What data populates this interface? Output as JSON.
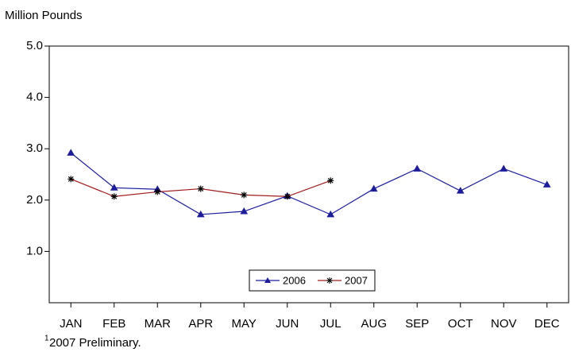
{
  "chart_data": {
    "type": "line",
    "y_label": "Million Pounds",
    "categories": [
      "JAN",
      "FEB",
      "MAR",
      "APR",
      "MAY",
      "JUN",
      "JUL",
      "AUG",
      "SEP",
      "OCT",
      "NOV",
      "DEC"
    ],
    "series": [
      {
        "name": "2006",
        "color": "#1c1c9c",
        "marker": "triangle",
        "values": [
          2.92,
          2.24,
          2.21,
          1.72,
          1.78,
          2.08,
          1.72,
          2.22,
          2.61,
          2.18,
          2.61,
          2.3
        ]
      },
      {
        "name": "2007",
        "color": "#a01c1c",
        "marker": "asterisk",
        "values": [
          2.41,
          2.07,
          2.16,
          2.22,
          2.1,
          2.07,
          2.38,
          null,
          null,
          null,
          null,
          null
        ]
      }
    ],
    "ylim": [
      0,
      5
    ],
    "yticks": [
      {
        "value": 1,
        "label": "1.0"
      },
      {
        "value": 2,
        "label": "2.0"
      },
      {
        "value": 3,
        "label": "3.0"
      },
      {
        "value": 4,
        "label": "4.0"
      },
      {
        "value": 5,
        "label": "5.0"
      }
    ],
    "grid": false,
    "legend": "bottom-center",
    "footnote_marker": "1",
    "footnote": "2007 Preliminary."
  }
}
